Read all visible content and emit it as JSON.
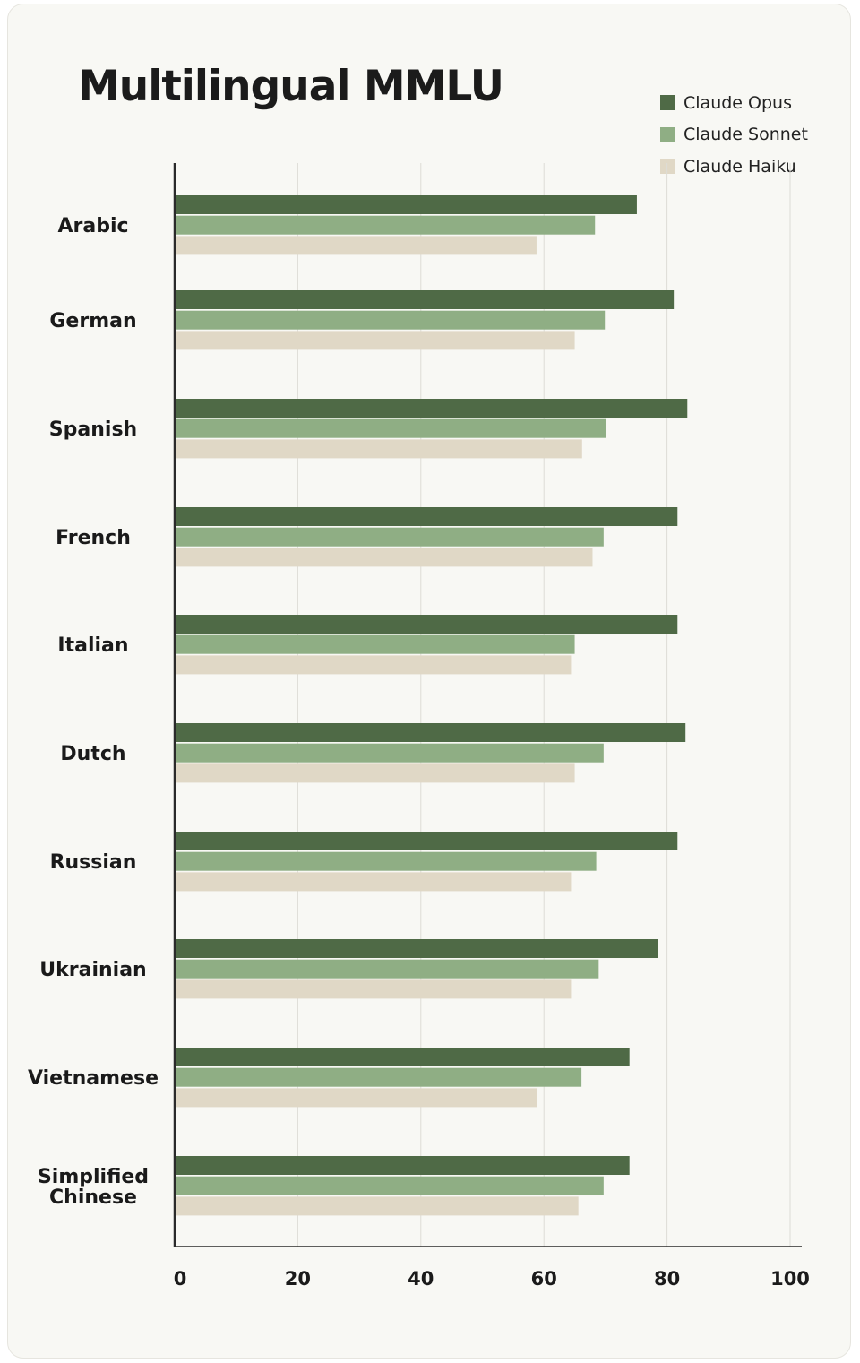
{
  "chart_data": {
    "type": "bar",
    "orientation": "horizontal",
    "title": "Multilingual MMLU",
    "categories": [
      "Arabic",
      "German",
      "Spanish",
      "French",
      "Italian",
      "Dutch",
      "Russian",
      "Ukrainian",
      "Vietnamese",
      "Simplified Chinese"
    ],
    "series": [
      {
        "name": "Claude Opus",
        "color": "#4f6a46",
        "values": [
          75.1,
          81.1,
          83.3,
          81.7,
          81.7,
          83.0,
          81.7,
          78.5,
          73.9,
          73.9
        ]
      },
      {
        "name": "Claude Sonnet",
        "color": "#8fae84",
        "values": [
          68.3,
          69.9,
          70.1,
          69.7,
          65.0,
          69.7,
          68.5,
          68.9,
          66.1,
          69.7
        ]
      },
      {
        "name": "Claude Haiku",
        "color": "#e0d8c6",
        "values": [
          58.8,
          65.0,
          66.2,
          67.9,
          64.4,
          65.0,
          64.4,
          64.4,
          58.9,
          65.6
        ]
      }
    ],
    "xlim": [
      0,
      100
    ],
    "xticks": [
      0,
      20,
      40,
      60,
      80,
      100
    ],
    "grid": true,
    "legend_position": "top-right"
  }
}
